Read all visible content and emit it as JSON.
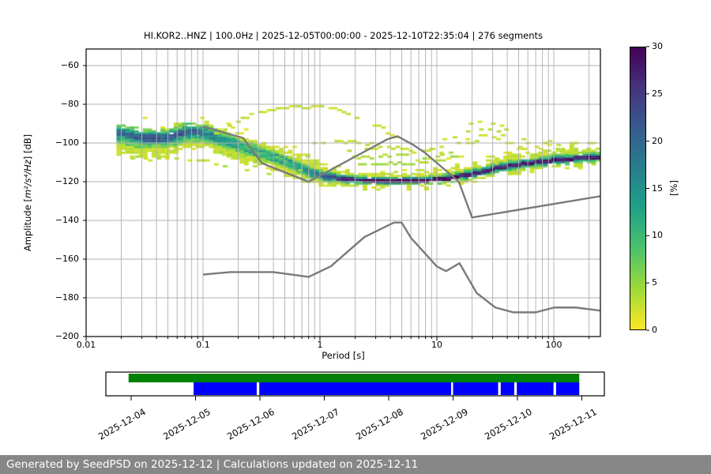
{
  "title": "HI.KOR2..HNZ | 100.0Hz | 2025-12-05T00:00:00 - 2025-12-10T22:35:04 | 276 segments",
  "footer": {
    "text": "Generated by SeedPSD on 2025-12-12 | Calculations updated on 2025-12-11",
    "bg": "#878787",
    "fg": "#ffffff"
  },
  "axes": {
    "xlabel": "Period [s]",
    "ylabel_prefix": "Amplitude [",
    "ylabel_math": "m²/s⁴/Hz",
    "ylabel_suffix": "] [dB]",
    "x_ticks": [
      {
        "label": "0.01",
        "t": 0.01
      },
      {
        "label": "0.1",
        "t": 0.1
      },
      {
        "label": "1",
        "t": 1
      },
      {
        "label": "10",
        "t": 10
      },
      {
        "label": "100",
        "t": 100
      }
    ],
    "y_ticks": [
      {
        "label": "−60",
        "v": -60
      },
      {
        "label": "−80",
        "v": -80
      },
      {
        "label": "−100",
        "v": -100
      },
      {
        "label": "−120",
        "v": -120
      },
      {
        "label": "−140",
        "v": -140
      },
      {
        "label": "−160",
        "v": -160
      },
      {
        "label": "−180",
        "v": -180
      },
      {
        "label": "−200",
        "v": -200
      }
    ],
    "grid_color": "#b0b0b0",
    "spine_color": "#000000"
  },
  "colorbar": {
    "label": "[%]",
    "ticks": [
      {
        "label": "0",
        "v": 0
      },
      {
        "label": "5",
        "v": 5
      },
      {
        "label": "10",
        "v": 10
      },
      {
        "label": "15",
        "v": 15
      },
      {
        "label": "20",
        "v": 20
      },
      {
        "label": "25",
        "v": 25
      },
      {
        "label": "30",
        "v": 30
      }
    ],
    "min": 0,
    "max": 30
  },
  "chart_data": {
    "type": "heatmap",
    "title": "HI.KOR2..HNZ | 100.0Hz | 2025-12-05T00:00:00 - 2025-12-10T22:35:04 | 276 segments",
    "xlabel": "Period [s]",
    "ylabel": "Amplitude [m²/s⁴/Hz] [dB]",
    "xscale": "log",
    "xlim": [
      0.01,
      250
    ],
    "ylim": [
      -200,
      -51
    ],
    "colorbar_label": "[%]",
    "colorbar_range": [
      0,
      30
    ],
    "colormap": {
      "name": "viridis_r",
      "stops": [
        [
          0.0,
          "#440154"
        ],
        [
          0.14,
          "#46327e"
        ],
        [
          0.29,
          "#365c8d"
        ],
        [
          0.43,
          "#277f8e"
        ],
        [
          0.57,
          "#1fa187"
        ],
        [
          0.71,
          "#4ac16d"
        ],
        [
          0.86,
          "#a0da39"
        ],
        [
          1.0,
          "#fde725"
        ]
      ]
    },
    "bin_log10_width": 0.0376,
    "ppsd_band": {
      "periods": [
        0.019,
        0.03,
        0.05,
        0.07,
        0.09,
        0.13,
        0.2,
        0.3,
        0.5,
        0.8,
        1.2,
        1.8,
        3,
        5,
        8,
        12,
        20,
        35,
        60,
        100,
        160,
        250
      ],
      "mode": [
        -95,
        -97.5,
        -97.5,
        -94.5,
        -94,
        -97,
        -101,
        -105,
        -109,
        -115,
        -117.5,
        -118.8,
        -119.5,
        -119.5,
        -119.3,
        -118.3,
        -116,
        -112.5,
        -110.3,
        -108.8,
        -107.8,
        -107
      ],
      "core_pct": [
        20,
        22,
        20,
        22,
        20,
        15,
        11,
        9,
        9,
        16,
        22,
        28,
        30,
        30,
        30,
        29,
        27,
        27,
        28,
        28,
        28,
        28
      ],
      "w_core": [
        1.5,
        1.5,
        1.5,
        1.5,
        1.5,
        1.2,
        1,
        1,
        1,
        1,
        1,
        0.9,
        0.9,
        0.9,
        0.9,
        0.9,
        1,
        1,
        1,
        1,
        1,
        1
      ],
      "w_teal": [
        3,
        3,
        3,
        3,
        3,
        2.5,
        2,
        2,
        2,
        2,
        2,
        1.6,
        1.5,
        1.5,
        1.5,
        1.6,
        1.8,
        1.8,
        1.8,
        1.8,
        1.8,
        1.8
      ],
      "w_green": [
        5.5,
        5.5,
        5,
        5,
        5,
        4.5,
        3.5,
        3.5,
        3.2,
        3,
        2.8,
        2.5,
        2.2,
        2.2,
        2.2,
        2.5,
        2.8,
        2.8,
        2.8,
        2.8,
        2.8,
        2.8
      ],
      "w_yellow_up": [
        5.5,
        5,
        4.5,
        5,
        5,
        5.5,
        5,
        5.5,
        5,
        7,
        5,
        4,
        3.5,
        3.5,
        3.5,
        4.5,
        5,
        5,
        4.5,
        4.5,
        4,
        4
      ],
      "w_yellow_down": [
        11,
        10,
        9,
        9,
        8,
        8,
        8,
        7,
        6.5,
        5.5,
        4.5,
        4,
        3.2,
        3,
        3,
        3.5,
        4,
        4,
        4,
        4,
        4,
        4
      ]
    },
    "outlier_curves": [
      {
        "pts": [
          [
            0.13,
            -95
          ],
          [
            0.2,
            -88
          ],
          [
            0.33,
            -84
          ],
          [
            0.55,
            -81.5
          ],
          [
            1.0,
            -81.5
          ],
          [
            1.6,
            -83.5
          ]
        ],
        "density": 0.92,
        "pct": 1.5
      },
      {
        "pts": [
          [
            1.6,
            -83.5
          ],
          [
            2.3,
            -87
          ],
          [
            3.5,
            -93
          ],
          [
            5,
            -99
          ],
          [
            7,
            -106
          ],
          [
            9,
            -111
          ]
        ],
        "density": 0.5,
        "pct": 1.5
      },
      {
        "pts": [
          [
            9,
            -103
          ],
          [
            13,
            -96.5
          ],
          [
            18,
            -90.5
          ],
          [
            24,
            -88.5
          ],
          [
            30,
            -89.5
          ],
          [
            40,
            -93
          ],
          [
            55,
            -98
          ],
          [
            75,
            -102
          ]
        ],
        "density": 0.5,
        "pct": 1.5
      },
      {
        "pts": [
          [
            10,
            -106
          ],
          [
            15,
            -100
          ],
          [
            22,
            -95.5
          ],
          [
            30,
            -96
          ],
          [
            45,
            -101
          ],
          [
            65,
            -104
          ]
        ],
        "density": 0.45,
        "pct": 1.5
      },
      {
        "pts": [
          [
            12,
            -99
          ],
          [
            18,
            -94
          ],
          [
            25,
            -92
          ],
          [
            33,
            -94
          ],
          [
            45,
            -98
          ]
        ],
        "density": 0.4,
        "pct": 1.5
      },
      {
        "pts": [
          [
            1.5,
            -104
          ],
          [
            2.5,
            -103
          ],
          [
            4,
            -102.5
          ],
          [
            6.5,
            -104
          ],
          [
            10,
            -103
          ],
          [
            15,
            -100
          ],
          [
            22,
            -99
          ]
        ],
        "density": 0.6,
        "pct": 2
      },
      {
        "pts": [
          [
            1.8,
            -108
          ],
          [
            3,
            -107
          ],
          [
            5,
            -106.5
          ],
          [
            8,
            -108
          ],
          [
            12,
            -105.5
          ],
          [
            18,
            -103.5
          ]
        ],
        "density": 0.6,
        "pct": 2.5
      },
      {
        "pts": [
          [
            2.2,
            -111.5
          ],
          [
            4,
            -110.5
          ],
          [
            7,
            -111
          ],
          [
            11,
            -108.5
          ],
          [
            16,
            -106
          ]
        ],
        "density": 0.55,
        "pct": 3
      },
      {
        "pts": [
          [
            0.9,
            -100
          ],
          [
            1.3,
            -99
          ],
          [
            2,
            -99.5
          ],
          [
            3,
            -100.5
          ]
        ],
        "density": 0.6,
        "pct": 2
      },
      {
        "pts": [
          [
            0.025,
            -107.5
          ],
          [
            0.05,
            -108.5
          ],
          [
            0.1,
            -109
          ],
          [
            0.18,
            -112
          ],
          [
            0.3,
            -115
          ],
          [
            0.5,
            -117.5
          ]
        ],
        "density": 0.5,
        "pct": 2
      },
      {
        "pts": [
          [
            0.12,
            -103.5
          ],
          [
            0.22,
            -107
          ],
          [
            0.4,
            -111
          ],
          [
            0.7,
            -115
          ]
        ],
        "density": 0.5,
        "pct": 3
      },
      {
        "pts": [
          [
            60,
            -101
          ],
          [
            90,
            -99.5
          ],
          [
            130,
            -101
          ],
          [
            180,
            -100
          ],
          [
            250,
            -100.5
          ]
        ],
        "density": 0.5,
        "pct": 1.5
      },
      {
        "pts": [
          [
            70,
            -105
          ],
          [
            110,
            -103.5
          ],
          [
            160,
            -104.5
          ],
          [
            220,
            -103
          ]
        ],
        "density": 0.5,
        "pct": 2.5
      }
    ],
    "noise_models": {
      "color": "#7a7a7a",
      "nlnm": [
        [
          0.1,
          -168.0
        ],
        [
          0.17,
          -166.7
        ],
        [
          0.4,
          -166.7
        ],
        [
          0.8,
          -169.2
        ],
        [
          1.24,
          -163.7
        ],
        [
          2.4,
          -148.6
        ],
        [
          4.3,
          -141.1
        ],
        [
          5.0,
          -141.1
        ],
        [
          6.0,
          -149.0
        ],
        [
          10.0,
          -163.8
        ],
        [
          12.0,
          -166.2
        ],
        [
          15.6,
          -162.1
        ],
        [
          21.9,
          -177.5
        ],
        [
          31.6,
          -185.0
        ],
        [
          45.0,
          -187.5
        ],
        [
          70.0,
          -187.5
        ],
        [
          101.0,
          -185.0
        ],
        [
          154.0,
          -185.0
        ],
        [
          250.0,
          -186.6
        ]
      ],
      "nhnm": [
        [
          0.1,
          -91.5
        ],
        [
          0.22,
          -97.4
        ],
        [
          0.32,
          -110.5
        ],
        [
          0.8,
          -120.0
        ],
        [
          3.8,
          -98.0
        ],
        [
          4.6,
          -96.5
        ],
        [
          6.3,
          -101.0
        ],
        [
          7.9,
          -105.0
        ],
        [
          15.4,
          -120.0
        ],
        [
          20.0,
          -138.5
        ],
        [
          250.0,
          -127.5
        ]
      ]
    },
    "availability_timeline": {
      "dates": [
        "2025-12-04",
        "2025-12-05",
        "2025-12-06",
        "2025-12-07",
        "2025-12-08",
        "2025-12-09",
        "2025-12-10",
        "2025-12-11"
      ],
      "green_color": "#008000",
      "blue_color": "#0000ff",
      "green_span_days": [
        -0.04,
        6.96
      ],
      "blue_segments_days": [
        [
          0.97,
          1.95
        ],
        [
          1.99,
          4.97
        ],
        [
          5.0,
          5.7
        ],
        [
          5.74,
          5.95
        ],
        [
          5.99,
          6.56
        ],
        [
          6.6,
          6.96
        ]
      ]
    }
  }
}
